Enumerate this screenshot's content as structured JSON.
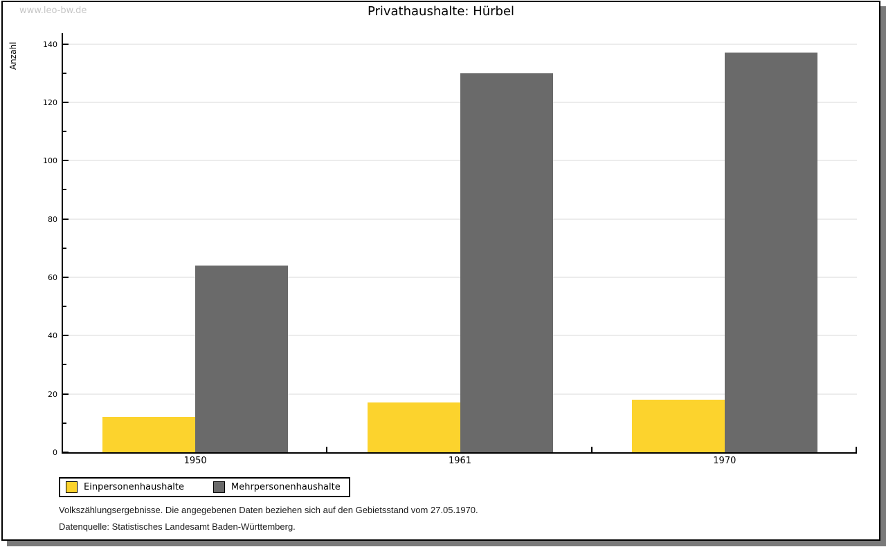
{
  "watermark": "www.leo-bw.de",
  "title": "Privathaushalte: Hürbel",
  "chart_data": {
    "type": "bar",
    "title": "Privathaushalte: Hürbel",
    "categories": [
      "1950",
      "1961",
      "1970"
    ],
    "series": [
      {
        "name": "Einpersonenhaushalte",
        "color": "#FCD32D",
        "values": [
          12,
          17,
          18
        ]
      },
      {
        "name": "Mehrpersonenhaushalte",
        "color": "#6A6A6A",
        "values": [
          64,
          130,
          137
        ]
      }
    ],
    "xlabel": "",
    "ylabel": "Anzahl",
    "ylim": [
      0,
      140
    ],
    "ytick_step": 20,
    "yticks": [
      0,
      20,
      40,
      60,
      80,
      100,
      120,
      140
    ],
    "grid": true,
    "legend_position": "bottom-left"
  },
  "legend": {
    "items": [
      {
        "label": "Einpersonenhaushalte",
        "color": "#FCD32D"
      },
      {
        "label": "Mehrpersonenhaushalte",
        "color": "#6A6A6A"
      }
    ]
  },
  "footnotes": {
    "line1": "Volkszählungsergebnisse. Die angegebenen Daten beziehen sich auf den Gebietsstand vom 27.05.1970.",
    "line2": "Datenquelle: Statistisches Landesamt Baden-Württemberg."
  },
  "colors": {
    "bar_yellow": "#FCD32D",
    "bar_gray": "#6A6A6A",
    "gridline": "#ECECEC",
    "axis": "#000000",
    "shadow": "#7A7A7A",
    "watermark": "#C6C6C6",
    "background": "#FFFFFF"
  }
}
